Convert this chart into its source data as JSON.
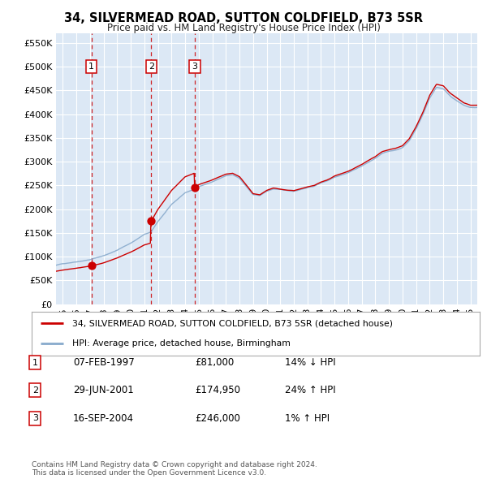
{
  "title": "34, SILVERMEAD ROAD, SUTTON COLDFIELD, B73 5SR",
  "subtitle": "Price paid vs. HM Land Registry's House Price Index (HPI)",
  "xlim": [
    1994.5,
    2025.5
  ],
  "ylim": [
    0,
    570000
  ],
  "yticks": [
    0,
    50000,
    100000,
    150000,
    200000,
    250000,
    300000,
    350000,
    400000,
    450000,
    500000,
    550000
  ],
  "ytick_labels": [
    "£0",
    "£50K",
    "£100K",
    "£150K",
    "£200K",
    "£250K",
    "£300K",
    "£350K",
    "£400K",
    "£450K",
    "£500K",
    "£550K"
  ],
  "sales": [
    {
      "label": "1",
      "date": "07-FEB-1997",
      "year": 1997.1,
      "price": 81000,
      "hpi_pct": "14% ↓ HPI"
    },
    {
      "label": "2",
      "date": "29-JUN-2001",
      "year": 2001.5,
      "price": 174950,
      "hpi_pct": "24% ↑ HPI"
    },
    {
      "label": "3",
      "date": "16-SEP-2004",
      "year": 2004.71,
      "price": 246000,
      "hpi_pct": "1% ↑ HPI"
    }
  ],
  "property_line_color": "#cc0000",
  "hpi_line_color": "#88aacc",
  "vline_color": "#cc0000",
  "plot_bg_color": "#dce8f5",
  "grid_color": "#ffffff",
  "legend_label_property": "34, SILVERMEAD ROAD, SUTTON COLDFIELD, B73 5SR (detached house)",
  "legend_label_hpi": "HPI: Average price, detached house, Birmingham",
  "footer": "Contains HM Land Registry data © Crown copyright and database right 2024.\nThis data is licensed under the Open Government Licence v3.0.",
  "xticks": [
    1995,
    1996,
    1997,
    1998,
    1999,
    2000,
    2001,
    2002,
    2003,
    2004,
    2005,
    2006,
    2007,
    2008,
    2009,
    2010,
    2011,
    2012,
    2013,
    2014,
    2015,
    2016,
    2017,
    2018,
    2019,
    2020,
    2021,
    2022,
    2023,
    2024,
    2025
  ]
}
